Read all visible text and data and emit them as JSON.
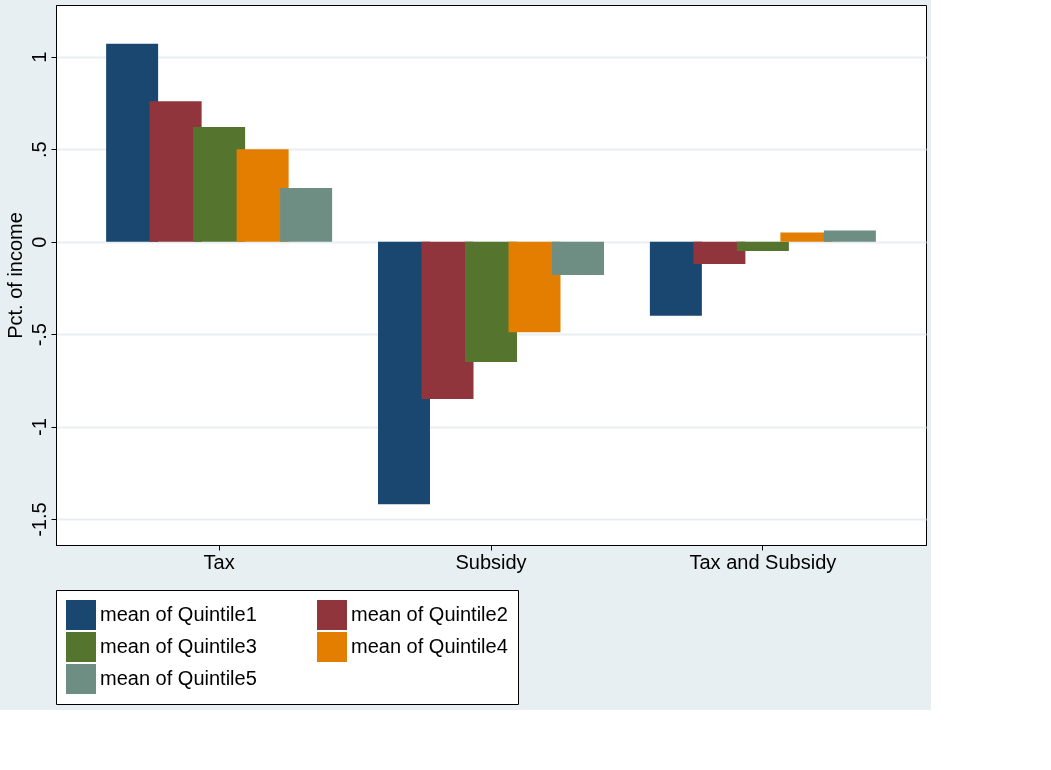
{
  "chart_data": {
    "type": "bar",
    "ylabel": "Pct. of income",
    "categories": [
      "Tax",
      "Subsidy",
      "Tax and Subsidy"
    ],
    "series": [
      {
        "name": "mean of Quintile1",
        "color": "#1a476f",
        "values": [
          1.07,
          -1.42,
          -0.4
        ]
      },
      {
        "name": "mean of Quintile2",
        "color": "#90353b",
        "values": [
          0.76,
          -0.85,
          -0.12
        ]
      },
      {
        "name": "mean of Quintile3",
        "color": "#55752f",
        "values": [
          0.62,
          -0.65,
          -0.05
        ]
      },
      {
        "name": "mean of Quintile4",
        "color": "#e37e00",
        "values": [
          0.5,
          -0.49,
          0.05
        ]
      },
      {
        "name": "mean of Quintile5",
        "color": "#6e8e84",
        "values": [
          0.29,
          -0.18,
          0.06
        ]
      }
    ],
    "ylim": [
      -1.64,
      1.28
    ],
    "yticks": [
      {
        "value": -1.5,
        "label": "-1.5"
      },
      {
        "value": -1,
        "label": "-1"
      },
      {
        "value": -0.5,
        "label": "-.5"
      },
      {
        "value": 0,
        "label": "0"
      },
      {
        "value": 0.5,
        "label": ".5"
      },
      {
        "value": 1,
        "label": "1"
      }
    ],
    "grid": "y",
    "legend": "bottom"
  }
}
